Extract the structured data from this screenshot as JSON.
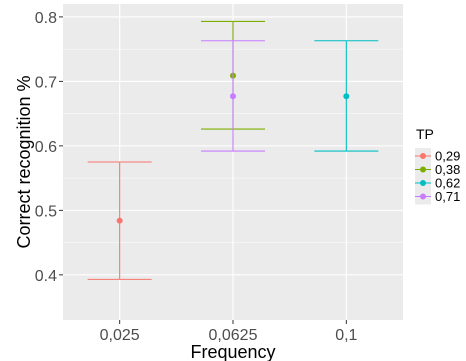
{
  "chart_data": {
    "type": "errorbar",
    "title": "",
    "xlabel": "Frequency",
    "ylabel": "Correct recognition %",
    "categories": [
      "0,025",
      "0,0625",
      "0,1"
    ],
    "y_ticks": [
      0.4,
      0.5,
      0.6,
      0.7,
      0.8
    ],
    "y_tick_labels": [
      "0.4",
      "0.5",
      "0.6",
      "0.7",
      "0.8"
    ],
    "ylim": [
      0.33,
      0.82
    ],
    "grid": true,
    "legend": {
      "title": "TP",
      "position": "right"
    },
    "series": [
      {
        "name": "0,29",
        "color": "#F8766D",
        "points": [
          {
            "category": "0,025",
            "y": 0.484,
            "ymin": 0.393,
            "ymax": 0.575
          }
        ]
      },
      {
        "name": "0,38",
        "color": "#7CAE00",
        "points": [
          {
            "category": "0,0625",
            "y": 0.709,
            "ymin": 0.626,
            "ymax": 0.793
          }
        ]
      },
      {
        "name": "0,62",
        "color": "#00BFC4",
        "points": [
          {
            "category": "0,1",
            "y": 0.677,
            "ymin": 0.592,
            "ymax": 0.763
          }
        ]
      },
      {
        "name": "0,71",
        "color": "#C77CFF",
        "points": [
          {
            "category": "0,0625",
            "y": 0.677,
            "ymin": 0.592,
            "ymax": 0.763
          }
        ]
      }
    ]
  }
}
